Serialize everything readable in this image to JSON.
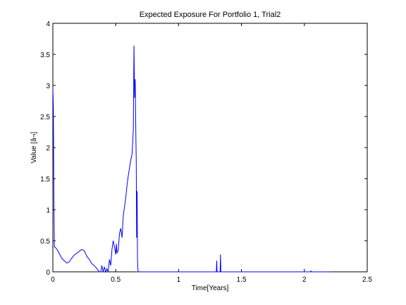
{
  "chart_data": {
    "type": "line",
    "title": "Expected Exposure For Portfolio 1, Trial2",
    "xlabel": "Time[Years]",
    "ylabel": "Value [â¬]",
    "xlim": [
      0,
      2.5
    ],
    "ylim": [
      0,
      4
    ],
    "xticks": [
      "0",
      "0.5",
      "1",
      "1.5",
      "2",
      "2.5"
    ],
    "yticks": [
      "0",
      "0.5",
      "1",
      "1.5",
      "2",
      "2.5",
      "3",
      "3.5",
      "4"
    ],
    "grid": false,
    "line_color": "#0000ff",
    "series": [
      {
        "x": [
          0,
          0.004,
          0.008,
          0.012,
          0.015,
          0.03,
          0.05,
          0.07,
          0.09,
          0.11,
          0.13,
          0.15,
          0.17,
          0.19,
          0.21,
          0.23,
          0.25,
          0.27,
          0.29,
          0.31,
          0.33,
          0.35,
          0.37,
          0.38,
          0.39,
          0.4,
          0.41,
          0.42,
          0.43,
          0.44,
          0.45,
          0.46,
          0.47,
          0.48,
          0.49,
          0.5,
          0.505,
          0.51,
          0.52,
          0.53,
          0.54,
          0.55,
          0.56,
          0.57,
          0.58,
          0.59,
          0.6,
          0.61,
          0.62,
          0.63,
          0.64,
          0.645,
          0.65,
          0.655,
          0.66,
          0.663,
          0.666,
          0.67,
          0.673,
          0.676,
          0.68,
          0.683,
          0.686,
          0.69,
          1.3,
          1.303,
          1.306,
          1.31,
          1.33,
          1.333,
          1.336,
          1.34,
          2.05,
          2.052,
          2.055,
          2.2
        ],
        "y": [
          2.95,
          2.64,
          1.2,
          0.4,
          0.4,
          0.37,
          0.3,
          0.22,
          0.18,
          0.14,
          0.16,
          0.22,
          0.27,
          0.3,
          0.33,
          0.36,
          0.34,
          0.25,
          0.2,
          0.13,
          0.1,
          0.05,
          0.0,
          0.0,
          0.1,
          0.0,
          0.08,
          0.0,
          0.05,
          0.0,
          0.2,
          0.1,
          0.36,
          0.5,
          0.4,
          0.28,
          0.45,
          0.3,
          0.35,
          0.62,
          0.7,
          0.55,
          0.9,
          1.05,
          1.2,
          1.4,
          1.55,
          1.68,
          1.8,
          1.9,
          2.3,
          3.64,
          2.8,
          3.1,
          2.2,
          1.8,
          0.55,
          1.3,
          0.2,
          0.05,
          0.0,
          0.0,
          0.0,
          0.0,
          0.0,
          0.18,
          0.0,
          0.0,
          0.0,
          0.28,
          0.0,
          0.0,
          0.0,
          0.02,
          0.0,
          0.0
        ]
      }
    ]
  }
}
